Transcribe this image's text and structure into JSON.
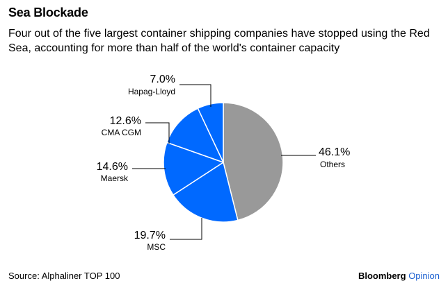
{
  "header": {
    "title": "Sea Blockade",
    "subtitle": "Four out of the five largest container shipping companies have stopped using the Red Sea, accounting for more than half of the world's container capacity"
  },
  "footer": {
    "source": "Source: Alphaliner TOP 100",
    "brand_primary": "Bloomberg",
    "brand_secondary": "Opinion"
  },
  "colors": {
    "carrier": "#0069ff",
    "others": "#999999",
    "separator": "#ffffff"
  },
  "chart_data": {
    "type": "pie",
    "title": "Sea Blockade",
    "slices": [
      {
        "name": "Others",
        "label": "46.1%",
        "value": 46.1,
        "color": "#999999"
      },
      {
        "name": "MSC",
        "label": "19.7%",
        "value": 19.7,
        "color": "#0069ff"
      },
      {
        "name": "Maersk",
        "label": "14.6%",
        "value": 14.6,
        "color": "#0069ff"
      },
      {
        "name": "CMA CGM",
        "label": "12.6%",
        "value": 12.6,
        "color": "#0069ff"
      },
      {
        "name": "Hapag-Lloyd",
        "label": "7.0%",
        "value": 7.0,
        "color": "#0069ff"
      }
    ],
    "start": "12 o'clock",
    "direction": "clockwise"
  }
}
